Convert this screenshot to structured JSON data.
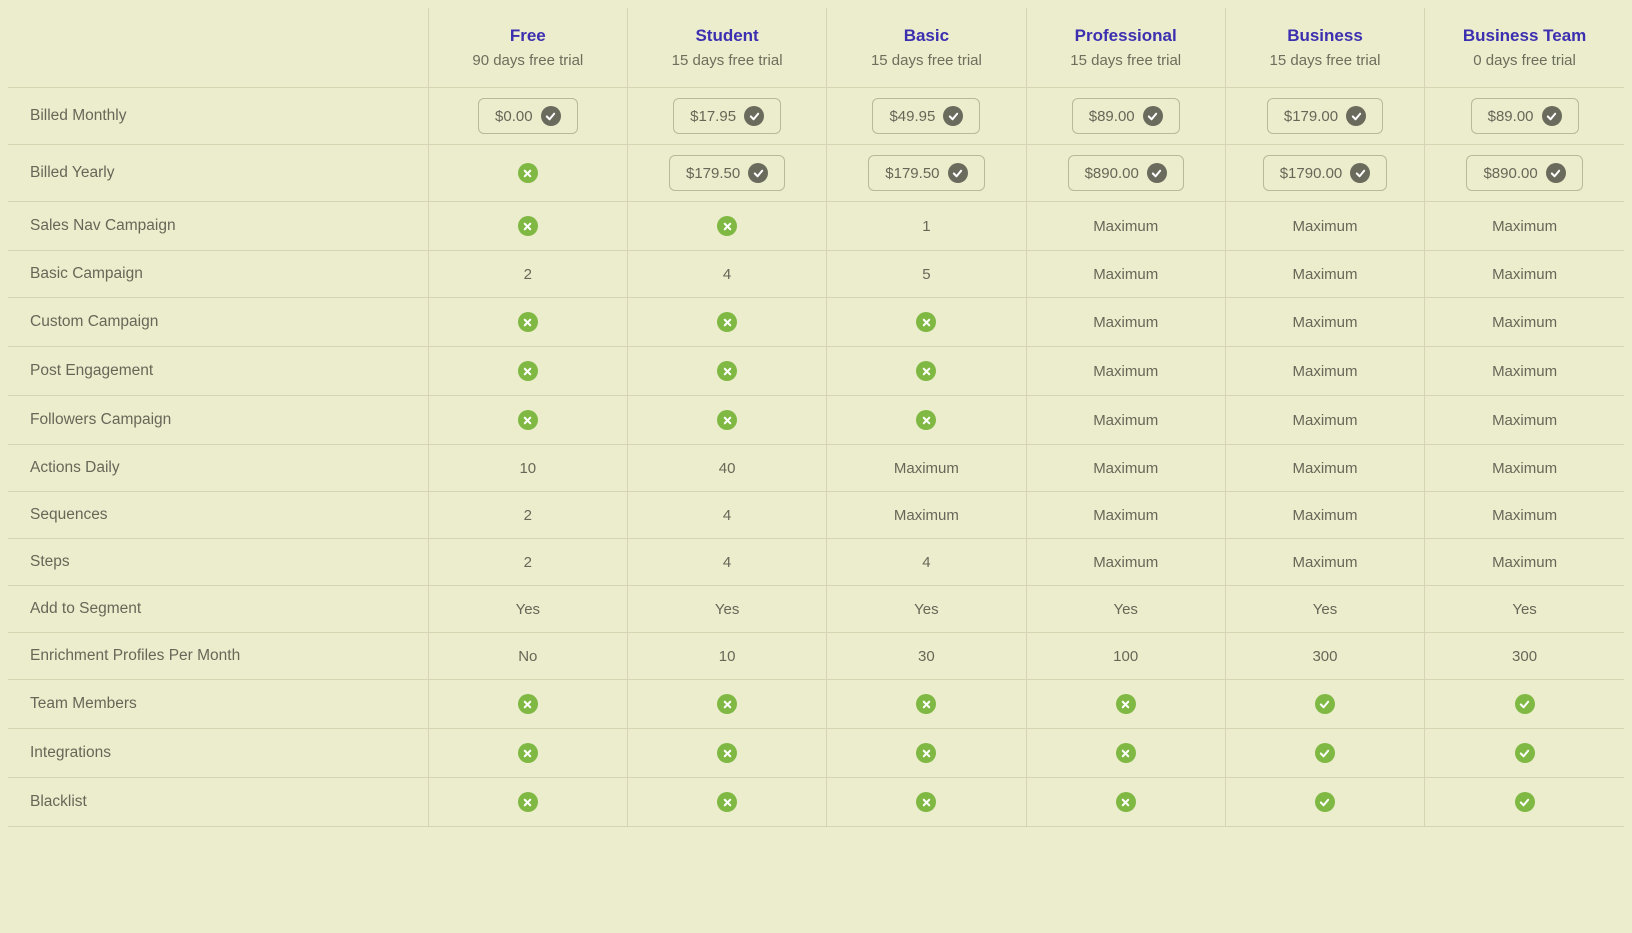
{
  "plans": [
    {
      "name": "Free",
      "trial": "90 days free trial"
    },
    {
      "name": "Student",
      "trial": "15 days free trial"
    },
    {
      "name": "Basic",
      "trial": "15 days free trial"
    },
    {
      "name": "Professional",
      "trial": "15 days free trial"
    },
    {
      "name": "Business",
      "trial": "15 days free trial"
    },
    {
      "name": "Business Team",
      "trial": "0 days free trial"
    }
  ],
  "rows": [
    {
      "label": "Billed Monthly",
      "type": "price",
      "cells": [
        {
          "kind": "price",
          "text": "$0.00"
        },
        {
          "kind": "price",
          "text": "$17.95"
        },
        {
          "kind": "price",
          "text": "$49.95"
        },
        {
          "kind": "price",
          "text": "$89.00"
        },
        {
          "kind": "price",
          "text": "$179.00"
        },
        {
          "kind": "price",
          "text": "$89.00"
        }
      ]
    },
    {
      "label": "Billed Yearly",
      "type": "price",
      "cells": [
        {
          "kind": "cross"
        },
        {
          "kind": "price",
          "text": "$179.50"
        },
        {
          "kind": "price",
          "text": "$179.50"
        },
        {
          "kind": "price",
          "text": "$890.00"
        },
        {
          "kind": "price",
          "text": "$1790.00"
        },
        {
          "kind": "price",
          "text": "$890.00"
        }
      ]
    },
    {
      "label": "Sales Nav Campaign",
      "cells": [
        {
          "kind": "cross"
        },
        {
          "kind": "cross"
        },
        {
          "kind": "text",
          "text": "1"
        },
        {
          "kind": "text",
          "text": "Maximum"
        },
        {
          "kind": "text",
          "text": "Maximum"
        },
        {
          "kind": "text",
          "text": "Maximum"
        }
      ]
    },
    {
      "label": "Basic Campaign",
      "cells": [
        {
          "kind": "text",
          "text": "2"
        },
        {
          "kind": "text",
          "text": "4"
        },
        {
          "kind": "text",
          "text": "5"
        },
        {
          "kind": "text",
          "text": "Maximum"
        },
        {
          "kind": "text",
          "text": "Maximum"
        },
        {
          "kind": "text",
          "text": "Maximum"
        }
      ]
    },
    {
      "label": "Custom Campaign",
      "cells": [
        {
          "kind": "cross"
        },
        {
          "kind": "cross"
        },
        {
          "kind": "cross"
        },
        {
          "kind": "text",
          "text": "Maximum"
        },
        {
          "kind": "text",
          "text": "Maximum"
        },
        {
          "kind": "text",
          "text": "Maximum"
        }
      ]
    },
    {
      "label": "Post Engagement",
      "cells": [
        {
          "kind": "cross"
        },
        {
          "kind": "cross"
        },
        {
          "kind": "cross"
        },
        {
          "kind": "text",
          "text": "Maximum"
        },
        {
          "kind": "text",
          "text": "Maximum"
        },
        {
          "kind": "text",
          "text": "Maximum"
        }
      ]
    },
    {
      "label": "Followers Campaign",
      "cells": [
        {
          "kind": "cross"
        },
        {
          "kind": "cross"
        },
        {
          "kind": "cross"
        },
        {
          "kind": "text",
          "text": "Maximum"
        },
        {
          "kind": "text",
          "text": "Maximum"
        },
        {
          "kind": "text",
          "text": "Maximum"
        }
      ]
    },
    {
      "label": "Actions Daily",
      "cells": [
        {
          "kind": "text",
          "text": "10"
        },
        {
          "kind": "text",
          "text": "40"
        },
        {
          "kind": "text",
          "text": "Maximum"
        },
        {
          "kind": "text",
          "text": "Maximum"
        },
        {
          "kind": "text",
          "text": "Maximum"
        },
        {
          "kind": "text",
          "text": "Maximum"
        }
      ]
    },
    {
      "label": "Sequences",
      "cells": [
        {
          "kind": "text",
          "text": "2"
        },
        {
          "kind": "text",
          "text": "4"
        },
        {
          "kind": "text",
          "text": "Maximum"
        },
        {
          "kind": "text",
          "text": "Maximum"
        },
        {
          "kind": "text",
          "text": "Maximum"
        },
        {
          "kind": "text",
          "text": "Maximum"
        }
      ]
    },
    {
      "label": "Steps",
      "cells": [
        {
          "kind": "text",
          "text": "2"
        },
        {
          "kind": "text",
          "text": "4"
        },
        {
          "kind": "text",
          "text": "4"
        },
        {
          "kind": "text",
          "text": "Maximum"
        },
        {
          "kind": "text",
          "text": "Maximum"
        },
        {
          "kind": "text",
          "text": "Maximum"
        }
      ]
    },
    {
      "label": "Add to Segment",
      "cells": [
        {
          "kind": "text",
          "text": "Yes"
        },
        {
          "kind": "text",
          "text": "Yes"
        },
        {
          "kind": "text",
          "text": "Yes"
        },
        {
          "kind": "text",
          "text": "Yes"
        },
        {
          "kind": "text",
          "text": "Yes"
        },
        {
          "kind": "text",
          "text": "Yes"
        }
      ]
    },
    {
      "label": "Enrichment Profiles Per Month",
      "cells": [
        {
          "kind": "text",
          "text": "No"
        },
        {
          "kind": "text",
          "text": "10"
        },
        {
          "kind": "text",
          "text": "30"
        },
        {
          "kind": "text",
          "text": "100"
        },
        {
          "kind": "text",
          "text": "300"
        },
        {
          "kind": "text",
          "text": "300"
        }
      ]
    },
    {
      "label": "Team Members",
      "cells": [
        {
          "kind": "cross"
        },
        {
          "kind": "cross"
        },
        {
          "kind": "cross"
        },
        {
          "kind": "cross"
        },
        {
          "kind": "check"
        },
        {
          "kind": "check"
        }
      ]
    },
    {
      "label": "Integrations",
      "cells": [
        {
          "kind": "cross"
        },
        {
          "kind": "cross"
        },
        {
          "kind": "cross"
        },
        {
          "kind": "cross"
        },
        {
          "kind": "check"
        },
        {
          "kind": "check"
        }
      ]
    },
    {
      "label": "Blacklist",
      "cells": [
        {
          "kind": "cross"
        },
        {
          "kind": "cross"
        },
        {
          "kind": "cross"
        },
        {
          "kind": "cross"
        },
        {
          "kind": "check"
        },
        {
          "kind": "check"
        }
      ]
    }
  ],
  "colors": {
    "background": "#ecedcd",
    "border": "#d5d6b1",
    "text": "#676758",
    "plan_name": "#3c2fb0",
    "icon_green": "#7fb843",
    "icon_gray": "#6a6b5c"
  }
}
